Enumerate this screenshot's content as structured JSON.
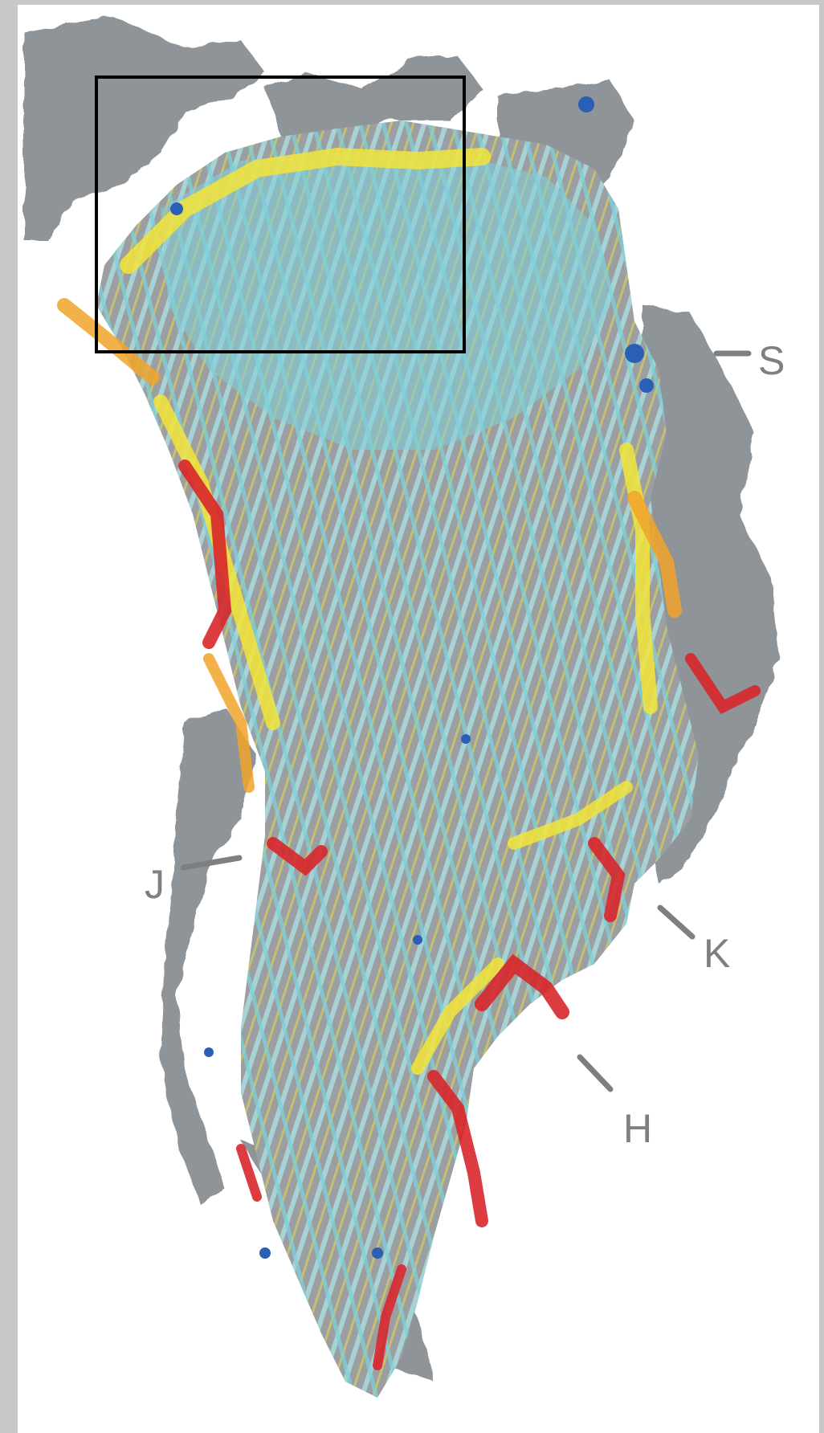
{
  "map": {
    "labels": {
      "S": "S",
      "J": "J",
      "K": "K",
      "H": "H"
    },
    "colors": {
      "land_hillshade": "#8e9497",
      "ice_base": "#9c9fa2",
      "track_cyan": "#7fd0d8",
      "track_lightblue": "#a9dcdf",
      "track_yellow": "#f3e43a",
      "track_orange": "#f1a329",
      "track_red": "#d8262a",
      "track_darkblue": "#2a5fb5",
      "box_outline": "#000000",
      "frame": "#c8c8c8",
      "label_gray": "#7f7f7f"
    }
  }
}
